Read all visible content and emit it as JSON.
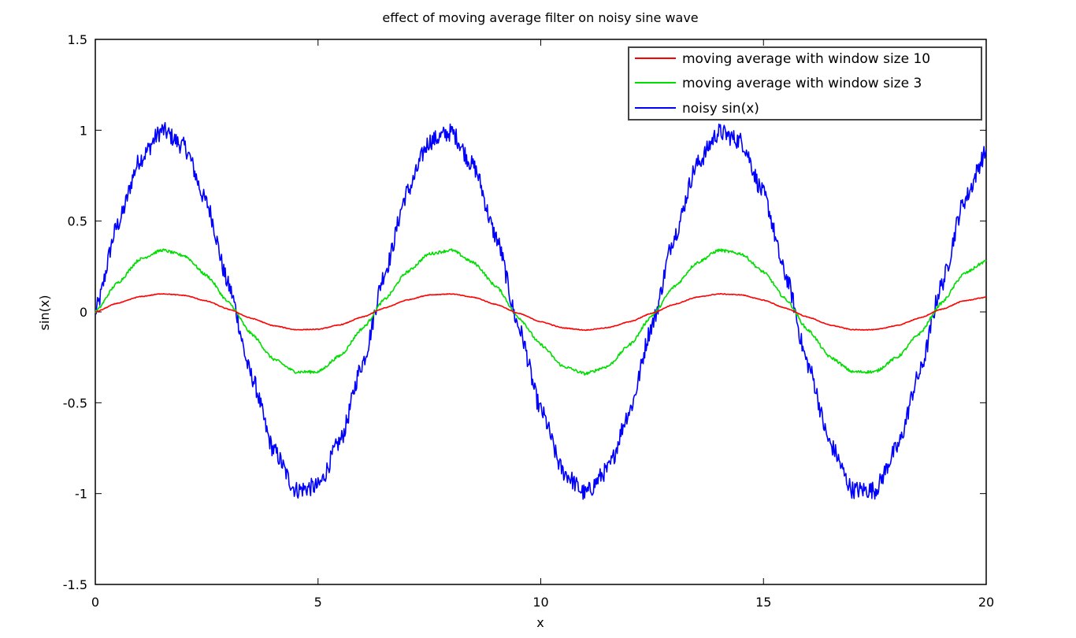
{
  "chart_data": {
    "type": "line",
    "title": "effect of moving average filter on noisy sine wave",
    "xlabel": "x",
    "ylabel": "sin(x)",
    "xlim": [
      0,
      20
    ],
    "ylim": [
      -1.5,
      1.5
    ],
    "xticks": [
      "0",
      "5",
      "10",
      "15",
      "20"
    ],
    "yticks": [
      "-1.5",
      "-1",
      "-0.5",
      "0",
      "0.5",
      "1",
      "1.5"
    ],
    "grid": false,
    "legend_position": "top-right",
    "x": [
      0,
      0.5,
      1,
      1.5,
      2,
      2.5,
      3,
      3.5,
      4,
      4.5,
      5,
      5.5,
      6,
      6.5,
      7,
      7.5,
      8,
      8.5,
      9,
      9.5,
      10,
      10.5,
      11,
      11.5,
      12,
      12.5,
      13,
      13.5,
      14,
      14.5,
      15,
      15.5,
      16,
      16.5,
      17,
      17.5,
      18,
      18.5,
      19,
      19.5,
      20
    ],
    "series": [
      {
        "name": "moving average with window size 10",
        "color": "#ff0000",
        "values": [
          0,
          0.048,
          0.084,
          0.1,
          0.091,
          0.06,
          0.014,
          -0.035,
          -0.076,
          -0.098,
          -0.096,
          -0.071,
          -0.028,
          0.022,
          0.066,
          0.094,
          0.099,
          0.08,
          0.041,
          -0.008,
          -0.054,
          -0.088,
          -0.1,
          -0.087,
          -0.054,
          -0.007,
          0.042,
          0.081,
          0.099,
          0.094,
          0.065,
          0.02,
          -0.029,
          -0.073,
          -0.098,
          -0.098,
          -0.075,
          -0.034,
          0.015,
          0.061,
          0.081
        ]
      },
      {
        "name": "moving average with window size 3",
        "color": "#00dd00",
        "values": [
          0,
          0.16,
          0.29,
          0.34,
          0.31,
          0.2,
          0.05,
          -0.12,
          -0.26,
          -0.33,
          -0.33,
          -0.24,
          -0.09,
          0.07,
          0.22,
          0.32,
          0.34,
          0.27,
          0.14,
          -0.03,
          -0.18,
          -0.3,
          -0.34,
          -0.3,
          -0.18,
          -0.02,
          0.14,
          0.27,
          0.34,
          0.32,
          0.22,
          0.07,
          -0.1,
          -0.25,
          -0.33,
          -0.33,
          -0.25,
          -0.12,
          0.05,
          0.21,
          0.28
        ]
      },
      {
        "name": "noisy sin(x)",
        "color": "#0000ff",
        "values": [
          0,
          0.48,
          0.84,
          1,
          0.91,
          0.6,
          0.14,
          -0.35,
          -0.76,
          -0.98,
          -0.96,
          -0.71,
          -0.28,
          0.22,
          0.66,
          0.94,
          0.99,
          0.8,
          0.41,
          -0.08,
          -0.54,
          -0.88,
          -1,
          -0.87,
          -0.54,
          -0.07,
          0.42,
          0.81,
          0.99,
          0.94,
          0.65,
          0.2,
          -0.29,
          -0.73,
          -0.98,
          -0.98,
          -0.75,
          -0.34,
          0.15,
          0.61,
          0.88
        ]
      }
    ]
  }
}
